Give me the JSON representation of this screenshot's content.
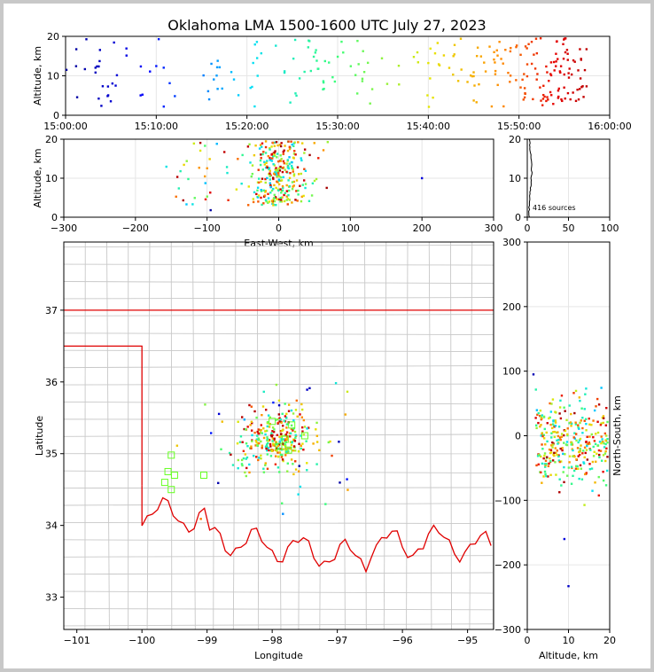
{
  "title": "Oklahoma LMA 1500-1600 UTC July 27, 2023",
  "colors": {
    "grid": "#e6e6e6",
    "state_line": "#e00000",
    "county_line": "#c8c8c8",
    "sq": "#66ff22"
  },
  "chart_data": [
    {
      "type": "scatter",
      "name": "time-height",
      "ylabel": "Altitude, km",
      "xlabel": "",
      "xlim": [
        "15:00:00",
        "16:00:00"
      ],
      "ylim": [
        0,
        20
      ],
      "xticks": [
        "15:00:00",
        "15:10:00",
        "15:20:00",
        "15:30:00",
        "15:40:00",
        "15:50:00",
        "16:00:00"
      ],
      "yticks": [
        0,
        10,
        20
      ],
      "color_by": "time",
      "note": "416 sources colored blue (early) to red (late)"
    },
    {
      "type": "scatter",
      "name": "east-west-height",
      "xlabel": "East-West, km",
      "ylabel": "Altitude, km",
      "xlim": [
        -300,
        300
      ],
      "ylim": [
        0,
        20
      ],
      "xticks": [
        -300,
        -200,
        -100,
        0,
        100,
        200,
        300
      ],
      "yticks": [
        0,
        10,
        20
      ]
    },
    {
      "type": "line",
      "name": "altitude-histogram",
      "xlim": [
        0,
        100
      ],
      "ylim": [
        0,
        20
      ],
      "xticks": [
        0,
        50,
        100
      ],
      "yticks": [
        0,
        10,
        20
      ],
      "annotation": "416 sources"
    },
    {
      "type": "scatter",
      "name": "plan-view",
      "xlabel": "Longitude",
      "ylabel": "Latitude",
      "xlim": [
        -101.2,
        -94.6
      ],
      "ylim": [
        32.55,
        37.95
      ],
      "xticks": [
        -101,
        -100,
        -99,
        -98,
        -97,
        -96,
        -95
      ],
      "yticks": [
        33,
        34,
        35,
        36,
        37
      ]
    },
    {
      "type": "scatter",
      "name": "north-south-height",
      "xlabel": "Altitude, km",
      "ylabel": "North-South, km",
      "xlim": [
        0,
        20
      ],
      "ylim": [
        -300,
        300
      ],
      "xticks": [
        0,
        10,
        20
      ],
      "yticks": [
        -300,
        -200,
        -100,
        0,
        100,
        200,
        300
      ]
    }
  ]
}
